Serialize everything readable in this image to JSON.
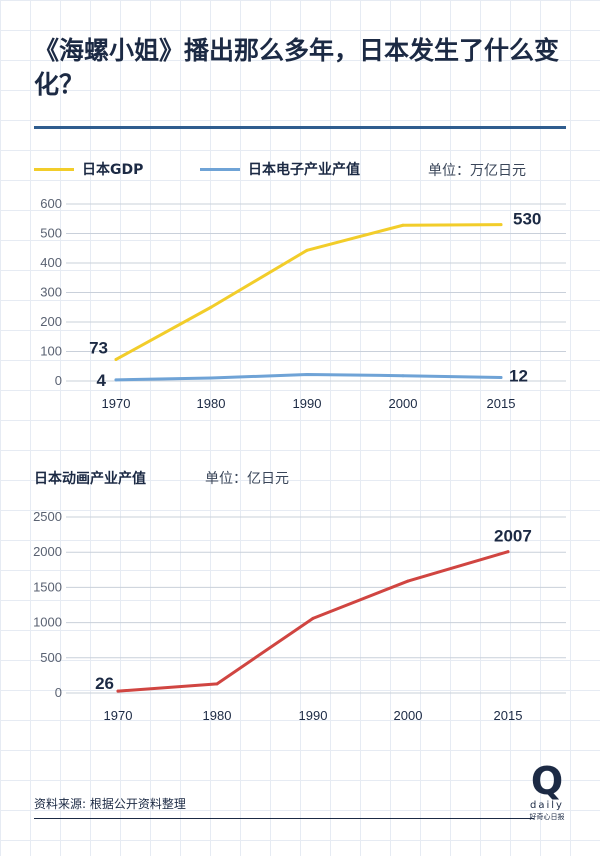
{
  "title": "《海螺小姐》播出那么多年，日本发生了什么变化？",
  "legend": {
    "gdp": "日本GDP",
    "electronics": "日本电子产业产值"
  },
  "unit1": "单位：万亿日元",
  "subtitle2": "日本动画产业产值",
  "unit2": "单位：亿日元",
  "source": "资料来源: 根据公开资料整理",
  "logo": {
    "letter": "Q",
    "word": "daily",
    "brand": "好奇心日报"
  },
  "colors": {
    "gdp": "#f2cd2a",
    "electronics": "#6fa3d6",
    "animation": "#d04541",
    "grid": "#c9d0da",
    "text": "#1c2a44"
  },
  "chart_data": [
    {
      "type": "line",
      "title": "",
      "categories": [
        "1970",
        "1980",
        "1990",
        "2000",
        "2015"
      ],
      "series": [
        {
          "name": "日本GDP",
          "values": [
            73,
            250,
            443,
            528,
            530
          ]
        },
        {
          "name": "日本电子产业产值",
          "values": [
            4,
            10,
            22,
            18,
            12
          ]
        }
      ],
      "data_labels": [
        {
          "series": 0,
          "index": 0,
          "text": "73"
        },
        {
          "series": 0,
          "index": 4,
          "text": "530"
        },
        {
          "series": 1,
          "index": 0,
          "text": "4"
        },
        {
          "series": 1,
          "index": 4,
          "text": "12"
        }
      ],
      "y_ticks": [
        0,
        100,
        200,
        300,
        400,
        500,
        600
      ],
      "ylim": [
        0,
        600
      ],
      "xlabel": "",
      "ylabel": ""
    },
    {
      "type": "line",
      "title": "日本动画产业产值",
      "categories": [
        "1970",
        "1980",
        "1990",
        "2000",
        "2015"
      ],
      "series": [
        {
          "name": "日本动画产业产值",
          "values": [
            26,
            130,
            1060,
            1590,
            2007
          ]
        }
      ],
      "data_labels": [
        {
          "series": 0,
          "index": 0,
          "text": "26"
        },
        {
          "series": 0,
          "index": 4,
          "text": "2007"
        }
      ],
      "y_ticks": [
        0,
        500,
        1000,
        1500,
        2000,
        2500
      ],
      "ylim": [
        0,
        2500
      ],
      "xlabel": "",
      "ylabel": ""
    }
  ]
}
